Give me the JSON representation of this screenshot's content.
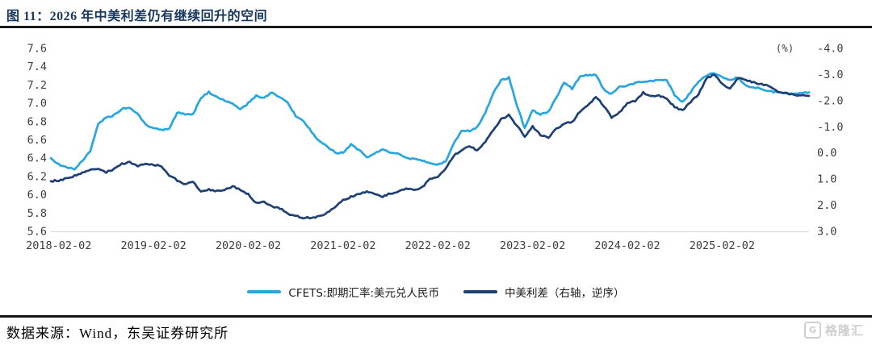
{
  "header": {
    "title": "图 11：2026 年中美利差仍有继续回升的空间"
  },
  "footer": {
    "source": "数据来源：Wind，东吴证券研究所",
    "watermark": "格隆汇",
    "watermark_icon": "G"
  },
  "chart_data": {
    "type": "line",
    "unit_label": "(%)",
    "x": {
      "start": "2018-01",
      "interval": "monthly",
      "count": 97
    },
    "x_tick_labels": [
      "2018-02-02",
      "2019-02-02",
      "2020-02-02",
      "2021-02-02",
      "2022-02-02",
      "2023-02-02",
      "2024-02-02",
      "2025-02-02"
    ],
    "x_tick_month_indices": [
      1,
      13,
      25,
      37,
      49,
      61,
      73,
      85
    ],
    "left_axis": {
      "min": 5.6,
      "max": 7.6,
      "ticks": [
        "7.6",
        "7.4",
        "7.2",
        "7.0",
        "6.8",
        "6.6",
        "6.4",
        "6.2",
        "6.0",
        "5.8",
        "5.6"
      ]
    },
    "right_axis": {
      "min": -4.0,
      "max": 3.0,
      "inverted": true,
      "ticks": [
        "-4.0",
        "-3.0",
        "-2.0",
        "-1.0",
        "0.0",
        "1.0",
        "2.0",
        "3.0"
      ]
    },
    "grid": "baseline-only",
    "legend_position": "bottom-center",
    "colors": {
      "cfets": "#27A6DF",
      "spread": "#1F4073"
    },
    "series": [
      {
        "name": "CFETS:即期汇率:美元兑人民币",
        "axis": "left",
        "color": "#27A6DF",
        "values": [
          6.4,
          6.33,
          6.3,
          6.28,
          6.37,
          6.48,
          6.78,
          6.84,
          6.87,
          6.94,
          6.95,
          6.88,
          6.77,
          6.72,
          6.71,
          6.72,
          6.9,
          6.88,
          6.88,
          7.06,
          7.12,
          7.07,
          7.03,
          6.99,
          6.93,
          7.0,
          7.08,
          7.06,
          7.12,
          7.07,
          7.0,
          6.86,
          6.8,
          6.69,
          6.58,
          6.53,
          6.46,
          6.46,
          6.55,
          6.49,
          6.41,
          6.45,
          6.49,
          6.46,
          6.45,
          6.4,
          6.39,
          6.37,
          6.35,
          6.33,
          6.36,
          6.56,
          6.7,
          6.7,
          6.74,
          6.89,
          7.11,
          7.25,
          7.28,
          6.98,
          6.73,
          6.92,
          6.88,
          6.91,
          7.06,
          7.23,
          7.16,
          7.29,
          7.31,
          7.31,
          7.15,
          7.1,
          7.18,
          7.19,
          7.22,
          7.24,
          7.24,
          7.26,
          7.25,
          7.09,
          7.01,
          7.12,
          7.24,
          7.3,
          7.33,
          7.28,
          7.26,
          7.28,
          7.2,
          7.17,
          7.16,
          7.13,
          7.12,
          7.11,
          7.1,
          7.11,
          7.12
        ]
      },
      {
        "name": "中美利差（右轴，逆序）",
        "axis": "right",
        "color": "#1F4073",
        "values": [
          1.08,
          1.05,
          0.98,
          0.88,
          0.75,
          0.66,
          0.62,
          0.74,
          0.62,
          0.42,
          0.35,
          0.52,
          0.4,
          0.45,
          0.52,
          0.85,
          1.05,
          1.22,
          1.1,
          1.5,
          1.4,
          1.46,
          1.4,
          1.28,
          1.4,
          1.58,
          1.92,
          1.88,
          2.05,
          2.12,
          2.32,
          2.42,
          2.48,
          2.48,
          2.42,
          2.28,
          2.08,
          1.8,
          1.68,
          1.58,
          1.48,
          1.58,
          1.68,
          1.55,
          1.48,
          1.35,
          1.42,
          1.32,
          1.0,
          0.92,
          0.6,
          0.12,
          -0.12,
          -0.28,
          -0.08,
          -0.4,
          -0.88,
          -1.28,
          -1.45,
          -1.05,
          -0.62,
          -1.02,
          -0.68,
          -0.58,
          -0.92,
          -1.12,
          -1.18,
          -1.58,
          -1.82,
          -2.15,
          -1.8,
          -1.35,
          -1.55,
          -1.9,
          -1.98,
          -2.3,
          -2.15,
          -2.2,
          -2.05,
          -1.75,
          -1.62,
          -1.95,
          -2.25,
          -2.85,
          -3.0,
          -2.65,
          -2.45,
          -2.88,
          -2.78,
          -2.7,
          -2.62,
          -2.55,
          -2.35,
          -2.28,
          -2.22,
          -2.2,
          -2.18
        ]
      }
    ]
  }
}
